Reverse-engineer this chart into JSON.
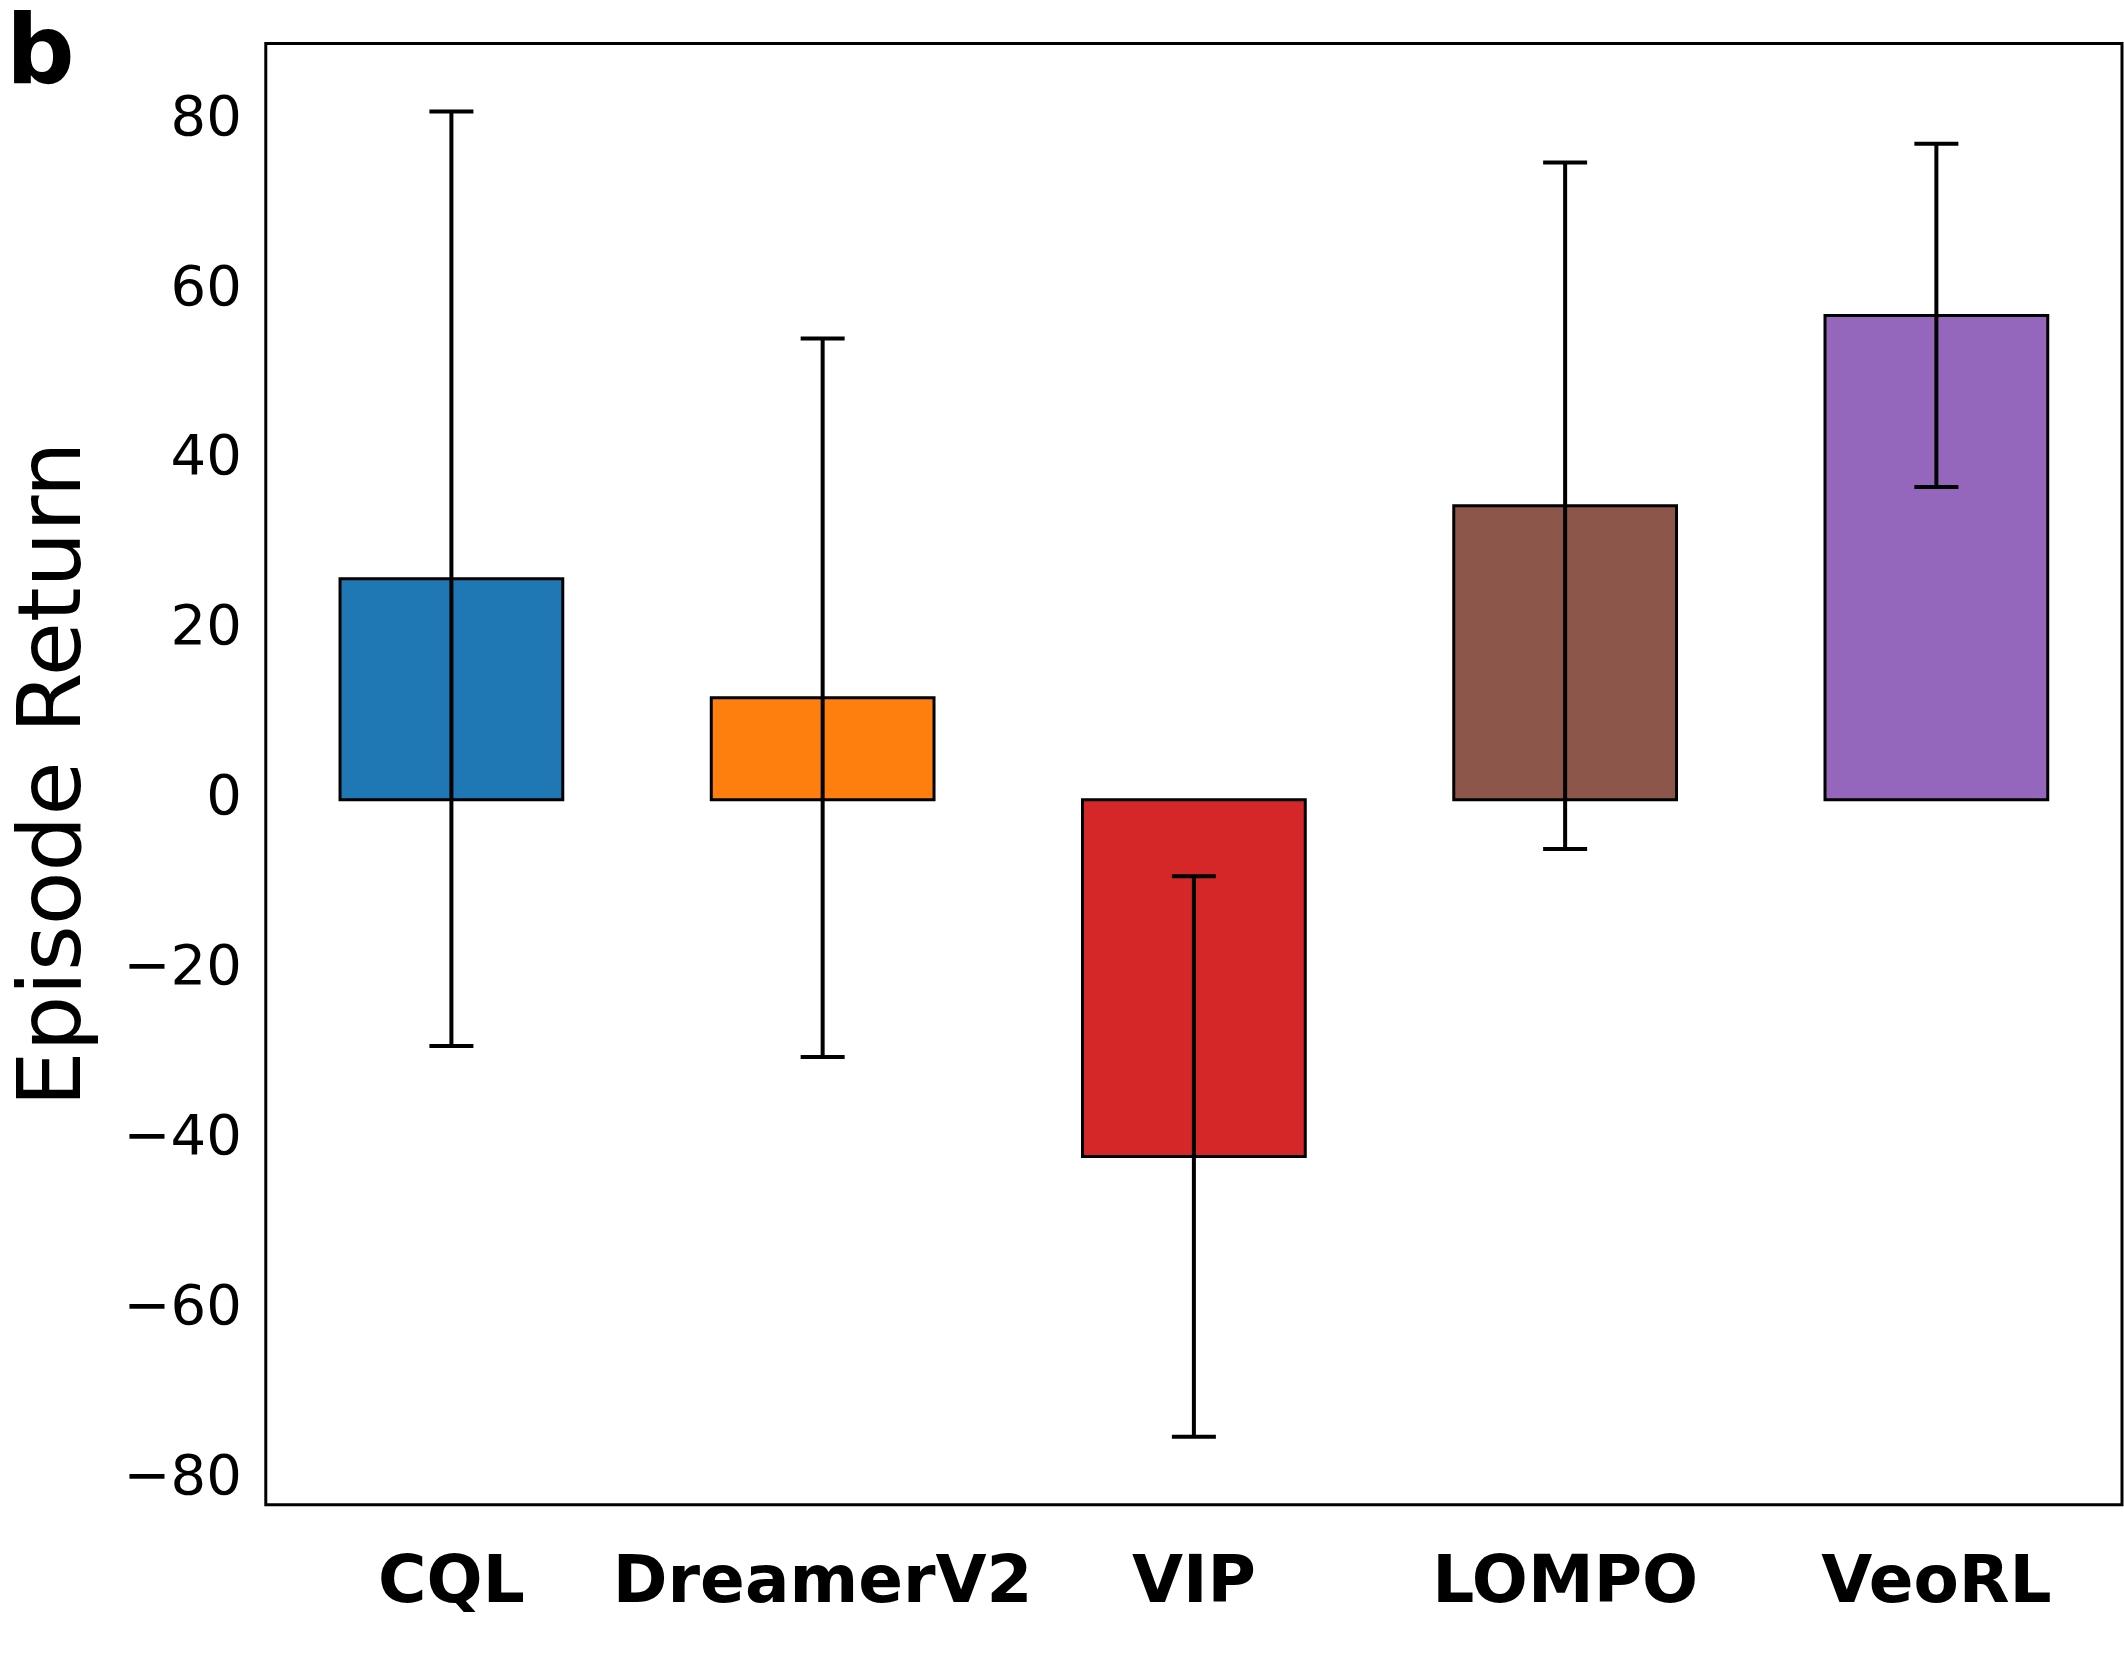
{
  "chart_data": {
    "type": "bar",
    "ylabel": "Episode Return",
    "annotations": [
      "b"
    ],
    "categories": [
      "CQL",
      "DreamerV2",
      "VIP",
      "LOMPO",
      "VeoRL"
    ],
    "values": [
      26,
      12,
      -42,
      34.6,
      57
    ],
    "colors": [
      "#1f77b4",
      "#ff7f0e",
      "#d62728",
      "#8c564b",
      "#9467bd"
    ],
    "errors": [
      55,
      42.3,
      33,
      40.4,
      20.2
    ],
    "ylim": [
      -83,
      89
    ],
    "yticks": [
      {
        "value": -80,
        "label": "−80"
      },
      {
        "value": -60,
        "label": "−60"
      },
      {
        "value": -40,
        "label": "−40"
      },
      {
        "value": -20,
        "label": "−20"
      },
      0,
      20,
      40,
      60,
      80
    ],
    "grid": false,
    "legend": false
  }
}
